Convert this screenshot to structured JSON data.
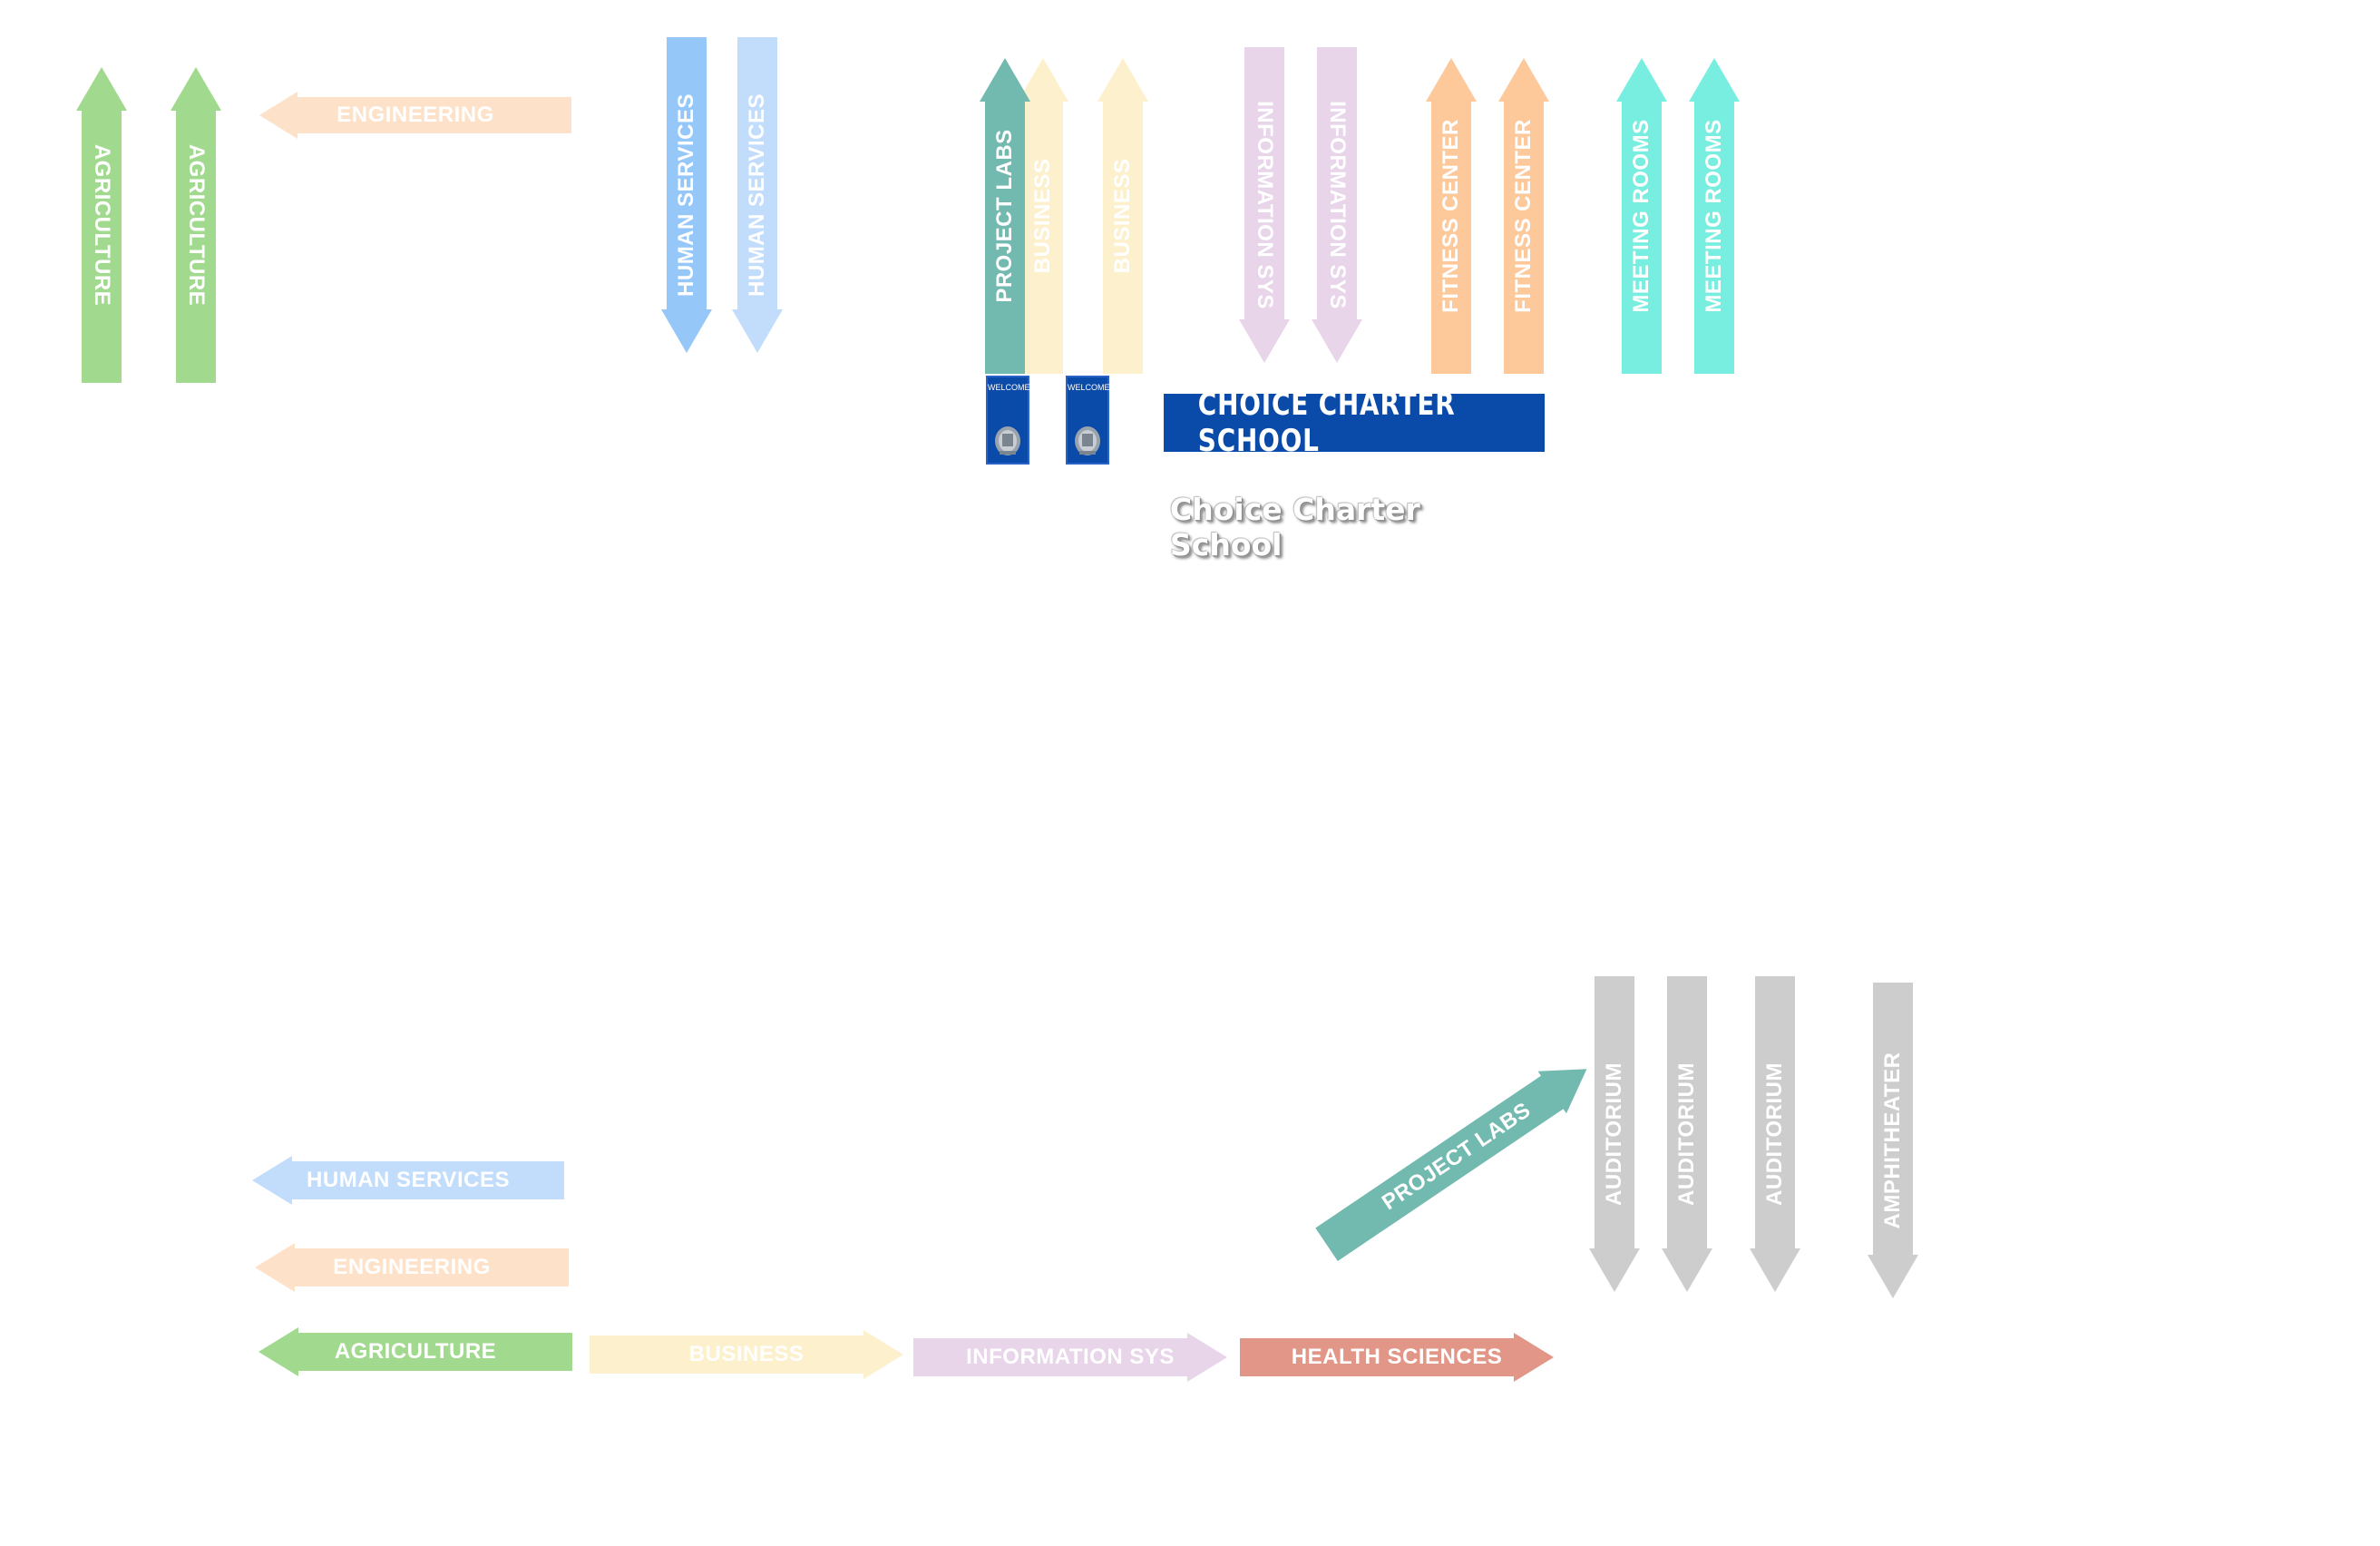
{
  "colors": {
    "agriculture": "#a1d98e",
    "engineering": "#fde2c9",
    "human_services_dark": "#96c7f9",
    "human_services_light": "#c2ddfc",
    "project_labs": "#72b9b0",
    "business": "#fdf0cd",
    "information_sys": "#e8d5ea",
    "fitness_center": "#fdc99a",
    "meeting_rooms": "#77eedf",
    "health_sciences": "#e29688",
    "auditorium": "#cdcdcd",
    "banner": "#0a4aa8"
  },
  "signs": {
    "agriculture": "AGRICULTURE",
    "engineering": "ENGINEERING",
    "human_services": "HUMAN SERVICES",
    "project_labs": "PROJECT LABS",
    "business": "BUSINESS",
    "information_sys": "INFORMATION SYS",
    "fitness_center": "FITNESS CENTER",
    "meeting_rooms": "MEETING ROOMS",
    "health_sciences": "HEALTH SCIENCES",
    "auditorium": "AUDITORIUM",
    "amphitheater": "AMPHITHEATER"
  },
  "panels": {
    "welcome": "WELCOME"
  },
  "banner": {
    "title": "CHOICE CHARTER SCHOOL"
  },
  "logo_text": "Choice Charter School"
}
